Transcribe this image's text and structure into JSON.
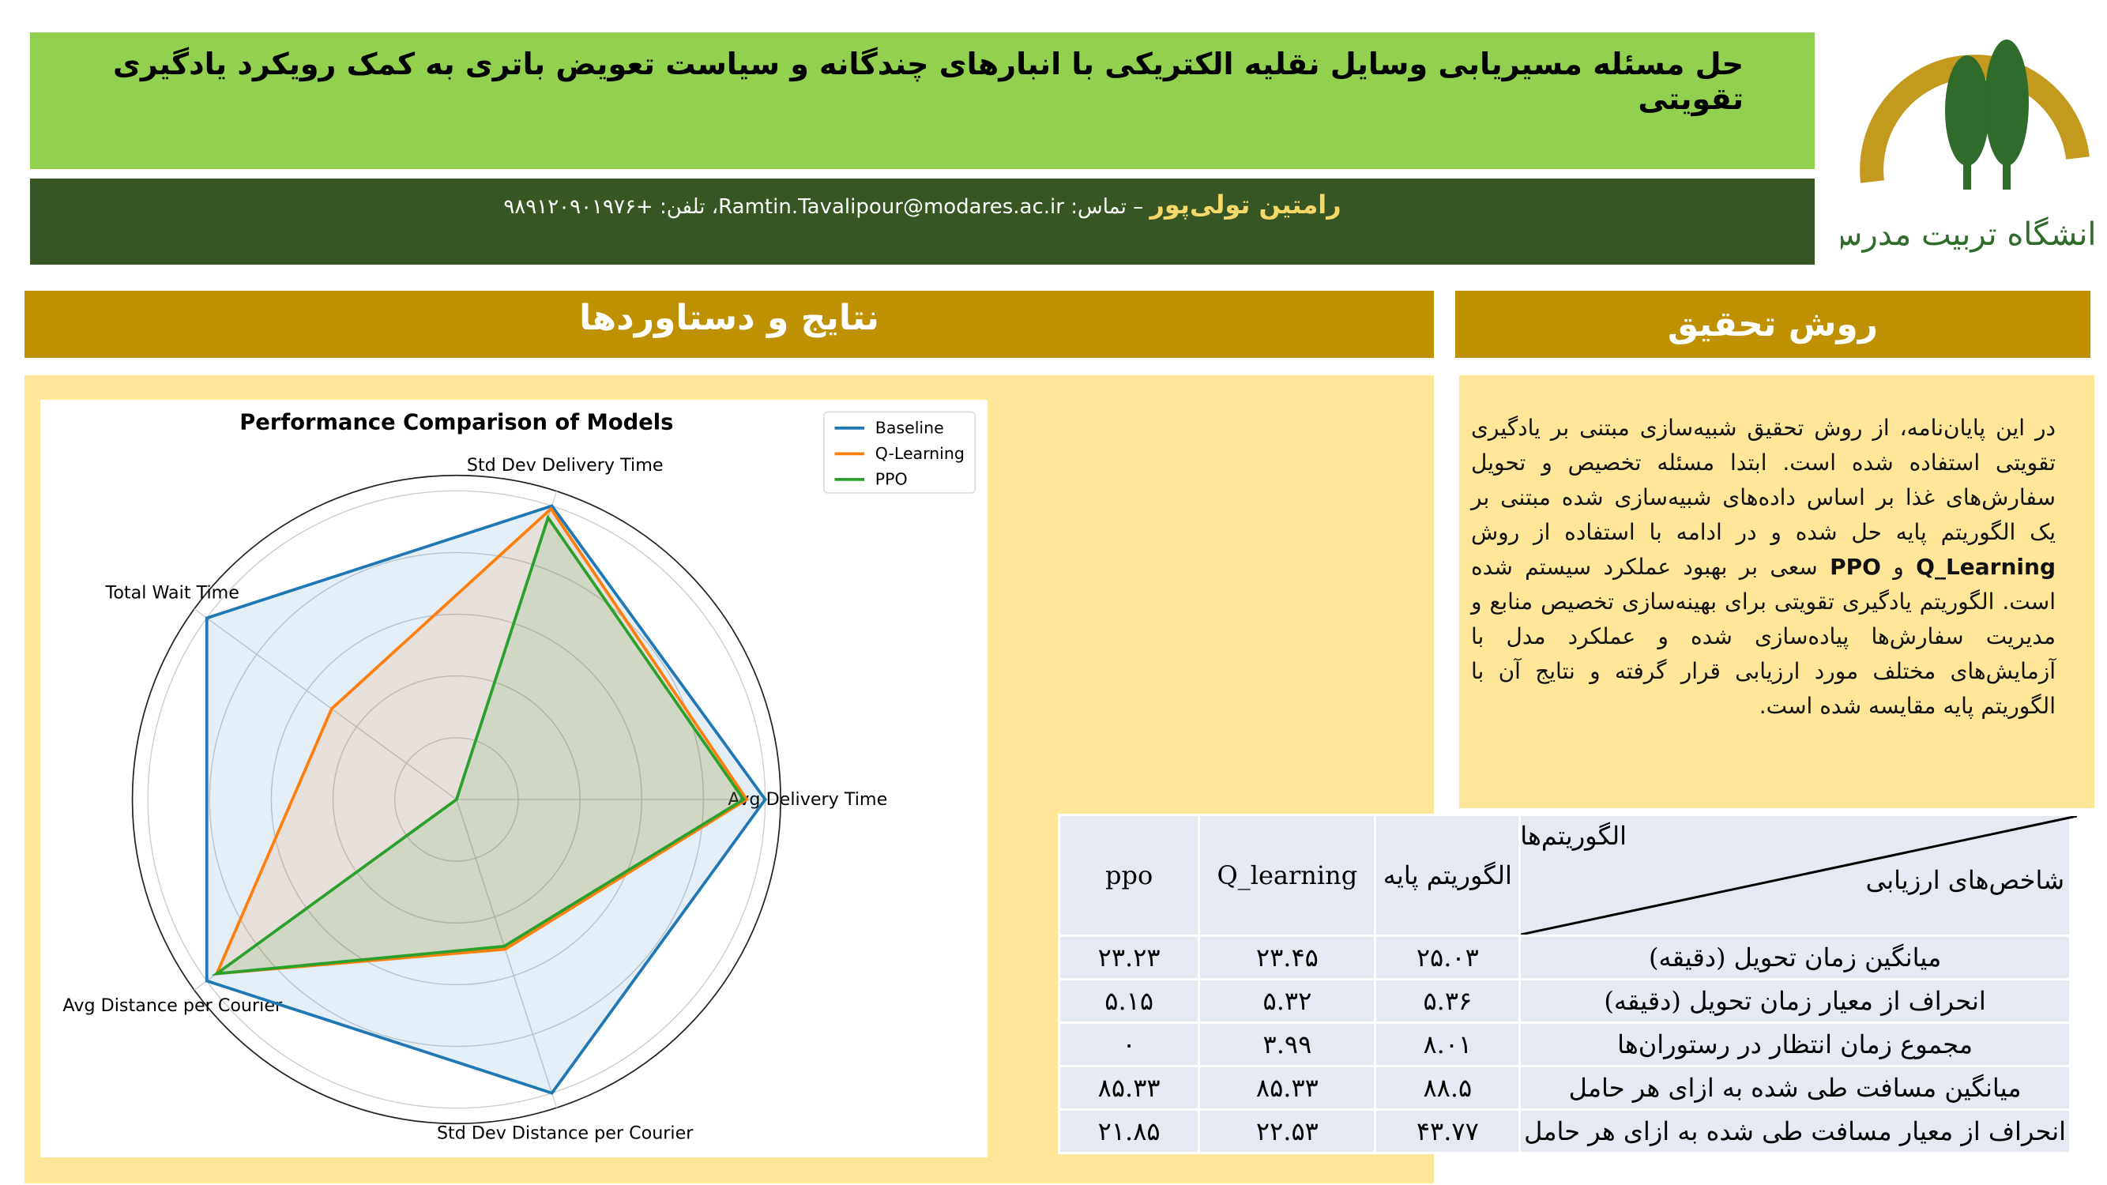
{
  "header": {
    "title": "حل مسئله مسیریابی وسایل نقلیه الکتریکی با انبارهای چندگانه و سیاست تعویض باتری به کمک رویکرد یادگیری تقویتی",
    "author": "رامتین تولی‌پور",
    "contact": "– تماس: Ramtin.Tavalipour@modares.ac.ir، تلفن: +۹۸۹۱۲۰۹۰۱۹۷۶",
    "logo_text": "دانشگاه تربیت مدرس"
  },
  "results": {
    "title": "نتایج و دستاوردها"
  },
  "method": {
    "title": "روش تحقیق",
    "paragraph": [
      "در این پایان‌نامه، از روش تحقیق شبیه‌سازی مبتنی بر یادگیری تقویتی استفاده شده است. ابتدا مسئله تخصیص و تحویل سفارش‌های غذا بر اساس داده‌های شبیه‌سازی شده مبتنی بر یک الگوریتم پایه حل شده و در ادامه با استفاده از روش ",
      "Q_Learning",
      " و ",
      "PPO",
      " سعی بر بهبود عملکرد سیستم شده است. الگوریتم یادگیری تقویتی برای بهینه‌سازی تخصیص منابع و مدیریت سفارش‌ها پیاده‌سازی شده و عملکرد مدل با آزمایش‌های مختلف مورد ارزیابی قرار گرفته و نتایج آن با الگوریتم پایه مقایسه شده است."
    ]
  },
  "chart_data": {
    "type": "radar",
    "title": "Performance Comparison of Models",
    "categories": [
      "Avg Delivery Time",
      "Std Dev Delivery Time",
      "Total Wait Time",
      "Avg Distance per Courier",
      "Std Dev Distance per Courier"
    ],
    "series": [
      {
        "name": "Baseline",
        "color": "#1f77b4",
        "values": [
          1,
          1,
          1,
          1,
          1
        ]
      },
      {
        "name": "Q-Learning",
        "color": "#ff7f0e",
        "values": [
          0.94,
          0.99,
          0.5,
          0.96,
          0.51
        ]
      },
      {
        "name": "PPO",
        "color": "#2ca02c",
        "values": [
          0.93,
          0.96,
          0,
          0.96,
          0.5
        ]
      }
    ],
    "rlim": [
      0,
      1.05
    ],
    "rticks": [
      0.2,
      0.4,
      0.6,
      0.8,
      1
    ],
    "grid": true,
    "legend": "upper right"
  },
  "table": {
    "corner_top": "الگوریتم‌ها",
    "corner_bottom": "شاخص‌های ارزیابی",
    "columns": [
      "الگوریتم پایه",
      "Q_learning",
      "ppo"
    ],
    "rows": [
      [
        "میانگین زمان تحویل (دقیقه)",
        "۲۵.۰۳",
        "۲۳.۴۵",
        "۲۳.۲۳"
      ],
      [
        "انحراف از معیار زمان تحویل (دقیقه)",
        "۵.۳۶",
        "۵.۳۲",
        "۵.۱۵"
      ],
      [
        "مجموع زمان انتظار در رستوران‌ها",
        "۸.۰۱",
        "۳.۹۹",
        "۰"
      ],
      [
        "میانگین مسافت طی شده به ازای هر حامل",
        "۸۸.۵",
        "۸۵.۳۳",
        "۸۵.۳۳"
      ],
      [
        "انحراف از معیار مسافت طی شده به ازای هر حامل",
        "۴۳.۷۷",
        "۲۲.۵۳",
        "۲۱.۸۵"
      ]
    ]
  }
}
